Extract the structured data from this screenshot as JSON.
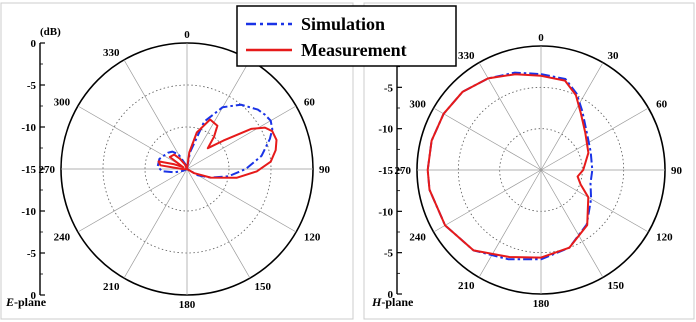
{
  "legend": {
    "series": [
      {
        "name": "Simulation",
        "color": "#1a33e6",
        "dash": "dashdot"
      },
      {
        "name": "Measurement",
        "color": "#e61a1a",
        "dash": "solid"
      }
    ]
  },
  "chart_data": [
    {
      "type": "polar",
      "title": "",
      "panel_label": "E-plane",
      "unit_label": "(dB)",
      "radial_range": [
        -15,
        0
      ],
      "radial_ticks": [
        "0",
        "-5",
        "-10",
        "-15",
        "-10",
        "-5",
        "0"
      ],
      "angle_ticks": [
        "0",
        "30",
        "60",
        "90",
        "120",
        "150",
        "180",
        "210",
        "240",
        "270",
        "300",
        "330"
      ],
      "grid": true,
      "series": [
        {
          "name": "Simulation",
          "points": [
            [
              0,
              -15
            ],
            [
              10,
              -13
            ],
            [
              20,
              -9
            ],
            [
              30,
              -6.5
            ],
            [
              40,
              -5
            ],
            [
              50,
              -4
            ],
            [
              55,
              -3.7
            ],
            [
              60,
              -3.5
            ],
            [
              65,
              -3.8
            ],
            [
              70,
              -4.5
            ],
            [
              80,
              -6
            ],
            [
              90,
              -8
            ],
            [
              100,
              -10
            ],
            [
              110,
              -12
            ],
            [
              120,
              -13.5
            ],
            [
              140,
              -15
            ],
            [
              180,
              -15
            ],
            [
              220,
              -15
            ],
            [
              245,
              -14.5
            ],
            [
              255,
              -13.5
            ],
            [
              265,
              -12
            ],
            [
              275,
              -11.5
            ],
            [
              290,
              -11.5
            ],
            [
              310,
              -12
            ],
            [
              320,
              -12.3
            ],
            [
              330,
              -13
            ],
            [
              345,
              -14.5
            ],
            [
              360,
              -15
            ]
          ]
        },
        {
          "name": "Measurement",
          "points": [
            [
              0,
              -15
            ],
            [
              8,
              -13
            ],
            [
              15,
              -10.5
            ],
            [
              25,
              -8.5
            ],
            [
              35,
              -8.7
            ],
            [
              40,
              -10
            ],
            [
              45,
              -11.5
            ],
            [
              52,
              -9.5
            ],
            [
              58,
              -6
            ],
            [
              62,
              -4.5
            ],
            [
              66,
              -3.9
            ],
            [
              72,
              -3.8
            ],
            [
              78,
              -4.2
            ],
            [
              85,
              -5
            ],
            [
              92,
              -6.7
            ],
            [
              100,
              -9
            ],
            [
              110,
              -12
            ],
            [
              120,
              -14
            ],
            [
              135,
              -15
            ],
            [
              180,
              -15
            ],
            [
              225,
              -15
            ],
            [
              250,
              -15
            ],
            [
              268,
              -14.5
            ],
            [
              278,
              -11.8
            ],
            [
              285,
              -11.5
            ],
            [
              290,
              -13.3
            ],
            [
              296,
              -14.5
            ],
            [
              305,
              -12.5
            ],
            [
              318,
              -12.7
            ],
            [
              325,
              -13.5
            ],
            [
              335,
              -14.4
            ],
            [
              345,
              -15
            ],
            [
              360,
              -15
            ]
          ]
        }
      ]
    },
    {
      "type": "polar",
      "title": "",
      "panel_label": "H-plane",
      "unit_label": "",
      "radial_range": [
        -15,
        0
      ],
      "radial_ticks": [
        "0",
        "-5",
        "-10",
        "-15",
        "-10",
        "-5",
        "0"
      ],
      "angle_ticks": [
        "0",
        "30",
        "60",
        "90",
        "120",
        "150",
        "180",
        "210",
        "240",
        "270",
        "300",
        "330"
      ],
      "grid": true,
      "series": [
        {
          "name": "Simulation",
          "points": [
            [
              0,
              -3.4
            ],
            [
              15,
              -3.6
            ],
            [
              25,
              -4.8
            ],
            [
              35,
              -6.3
            ],
            [
              50,
              -7.8
            ],
            [
              70,
              -8.6
            ],
            [
              90,
              -8.8
            ],
            [
              105,
              -8.8
            ],
            [
              120,
              -8
            ],
            [
              140,
              -6.4
            ],
            [
              160,
              -5
            ],
            [
              180,
              -4.2
            ],
            [
              200,
              -3.5
            ],
            [
              220,
              -2.3
            ],
            [
              240,
              -1.6
            ],
            [
              260,
              -1.3
            ],
            [
              270,
              -1.3
            ],
            [
              285,
              -1.3
            ],
            [
              300,
              -1.4
            ],
            [
              315,
              -1.6
            ],
            [
              330,
              -2.2
            ],
            [
              345,
              -2.8
            ],
            [
              360,
              -3.4
            ]
          ]
        },
        {
          "name": "Measurement",
          "points": [
            [
              0,
              -3.6
            ],
            [
              15,
              -3.8
            ],
            [
              25,
              -5
            ],
            [
              35,
              -6.6
            ],
            [
              50,
              -8
            ],
            [
              70,
              -8.9
            ],
            [
              90,
              -9.9
            ],
            [
              100,
              -10.5
            ],
            [
              110,
              -9.9
            ],
            [
              120,
              -8.4
            ],
            [
              140,
              -6.3
            ],
            [
              160,
              -5
            ],
            [
              180,
              -4.4
            ],
            [
              200,
              -3.8
            ],
            [
              220,
              -2.3
            ],
            [
              240,
              -1.6
            ],
            [
              260,
              -1.3
            ],
            [
              270,
              -1.3
            ],
            [
              285,
              -1.3
            ],
            [
              300,
              -1.4
            ],
            [
              315,
              -1.6
            ],
            [
              330,
              -2.2
            ],
            [
              345,
              -3
            ],
            [
              360,
              -3.6
            ]
          ]
        }
      ]
    }
  ]
}
